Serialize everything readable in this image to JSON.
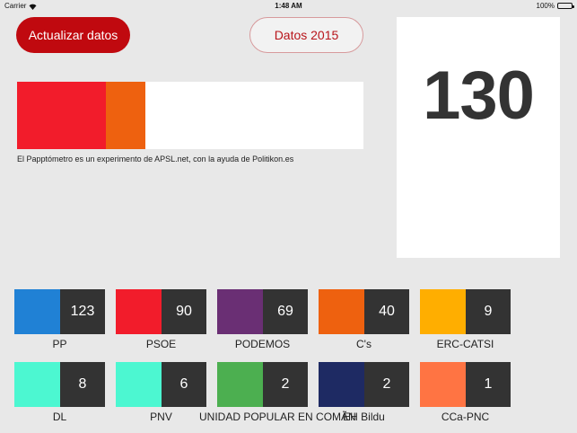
{
  "status_bar": {
    "carrier": "Carrier",
    "time": "1:48 AM",
    "battery": "100%"
  },
  "buttons": {
    "update_label": "Actualizar datos",
    "data_2015_label": "Datos 2015"
  },
  "seat_bar": {
    "max_seats": 350,
    "segments": [
      {
        "party": "PSOE",
        "seats": 90,
        "color": "#f21c2b"
      },
      {
        "party": "C's",
        "seats": 40,
        "color": "#ee610f"
      }
    ]
  },
  "credit": "El Papptómetro es un experimento de APSL.net, con la ayuda de Politikon.es",
  "total": "130",
  "parties": [
    {
      "name": "PP",
      "seats": "123",
      "color": "#2081d5"
    },
    {
      "name": "PSOE",
      "seats": "90",
      "color": "#f21c2b"
    },
    {
      "name": "PODEMOS",
      "seats": "69",
      "color": "#6a2f74"
    },
    {
      "name": "C's",
      "seats": "40",
      "color": "#ee610f"
    },
    {
      "name": "ERC-CATSI",
      "seats": "9",
      "color": "#ffae00"
    },
    {
      "name": "DL",
      "seats": "8",
      "color": "#4cf7d1"
    },
    {
      "name": "PNV",
      "seats": "6",
      "color": "#4cf7d1"
    },
    {
      "name": "UNIDAD POPULAR EN COMÃN",
      "seats": "2",
      "color": "#4caf50"
    },
    {
      "name": "EH Bildu",
      "seats": "2",
      "color": "#1e2a63"
    },
    {
      "name": "CCa-PNC",
      "seats": "1",
      "color": "#ff7443"
    }
  ]
}
